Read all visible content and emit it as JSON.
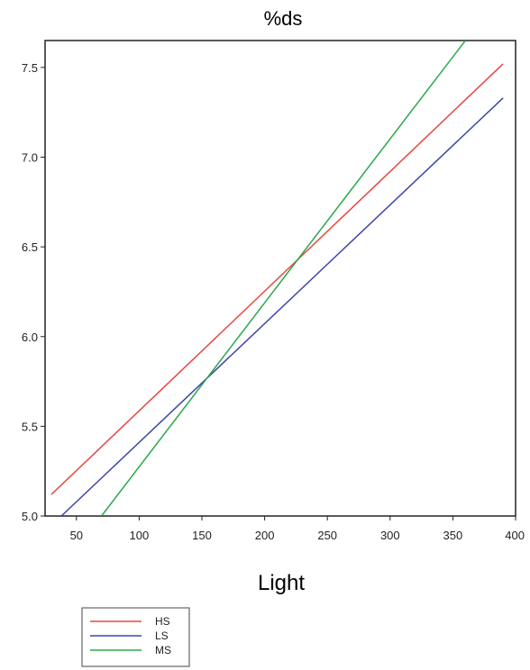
{
  "chart_data": {
    "type": "line",
    "title": "%ds",
    "xlabel": "Light",
    "ylabel": "",
    "xlim": [
      25,
      400
    ],
    "ylim": [
      5.0,
      7.65
    ],
    "x_ticks": [
      50,
      100,
      150,
      200,
      250,
      300,
      350,
      400
    ],
    "x_tick_labels": [
      "50",
      "100",
      "150",
      "200",
      "250",
      "300",
      "350",
      "400"
    ],
    "y_ticks": [
      5.0,
      5.5,
      6.0,
      6.5,
      7.0,
      7.5
    ],
    "y_tick_labels": [
      "5.0",
      "5.5",
      "6.0",
      "6.5",
      "7.0",
      "7.5"
    ],
    "grid": false,
    "legend_position": "bottom-left",
    "series": [
      {
        "name": "HS",
        "color": "#e8473f",
        "x": [
          30,
          390
        ],
        "y": [
          5.12,
          7.52
        ]
      },
      {
        "name": "LS",
        "color": "#3c46a8",
        "x": [
          38,
          390
        ],
        "y": [
          5.0,
          7.33
        ]
      },
      {
        "name": "MS",
        "color": "#2aa84a",
        "x": [
          70,
          360
        ],
        "y": [
          5.0,
          7.65
        ]
      }
    ]
  }
}
